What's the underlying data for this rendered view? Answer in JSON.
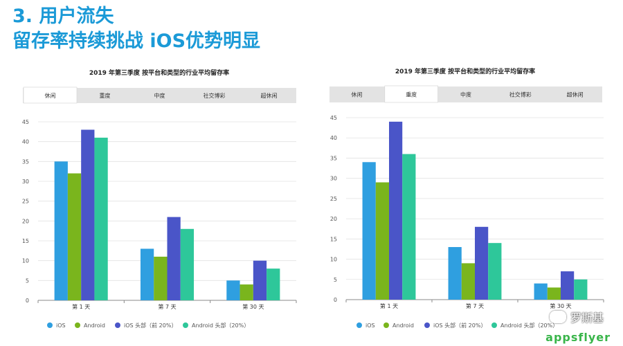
{
  "slide": {
    "title_line1": "3. 用户流失",
    "title_line2": "留存率持续挑战  iOS优势明显"
  },
  "colors": {
    "title": "#1b9ad7",
    "ios": "#2f9fe0",
    "android": "#7ab51d",
    "ios_top": "#4a55c8",
    "android_top": "#2ec79a",
    "tab_active_bg": "#ffffff",
    "tab_bg": "#e3e3e3"
  },
  "chart_data": [
    {
      "type": "bar",
      "title": "2019 年第三季度 按平台和类型的行业平均留存率",
      "tabs": [
        "休闲",
        "重度",
        "中度",
        "社交博彩",
        "超休闲"
      ],
      "active_tab": 0,
      "categories": [
        "第 1 天",
        "第 7 天",
        "第 30 天"
      ],
      "series": [
        {
          "name": "iOS",
          "values": [
            35,
            13,
            5
          ]
        },
        {
          "name": "Android",
          "values": [
            32,
            11,
            4
          ]
        },
        {
          "name": "iOS 头部（前 20%）",
          "values": [
            43,
            21,
            10
          ]
        },
        {
          "name": "Android 头部（20%）",
          "values": [
            41,
            18,
            8
          ]
        }
      ],
      "yticks": [
        "45",
        "40",
        "35",
        "30",
        "25",
        "20",
        "15",
        "10",
        "5",
        "0"
      ],
      "ylim": [
        0,
        45
      ],
      "grid": true,
      "legend_position": "bottom"
    },
    {
      "type": "bar",
      "title": "2019 年第三季度 按平台和类型的行业平均留存率",
      "tabs": [
        "休闲",
        "重度",
        "中度",
        "社交博彩",
        "超休闲"
      ],
      "active_tab": 1,
      "categories": [
        "第 1 天",
        "第 7 天",
        "第 30 天"
      ],
      "series": [
        {
          "name": "iOS",
          "values": [
            34,
            13,
            4
          ]
        },
        {
          "name": "Android",
          "values": [
            29,
            9,
            3
          ]
        },
        {
          "name": "iOS 头部（前 20%）",
          "values": [
            44,
            18,
            7
          ]
        },
        {
          "name": "Android 头部（20%）",
          "values": [
            36,
            14,
            5
          ]
        }
      ],
      "yticks": [
        "45",
        "40",
        "35",
        "30",
        "25",
        "20",
        "15",
        "10",
        "5",
        "0"
      ],
      "ylim": [
        0,
        45
      ],
      "grid": true,
      "legend_position": "bottom"
    }
  ],
  "watermark": "罗斯基",
  "logo": "appsflyer"
}
